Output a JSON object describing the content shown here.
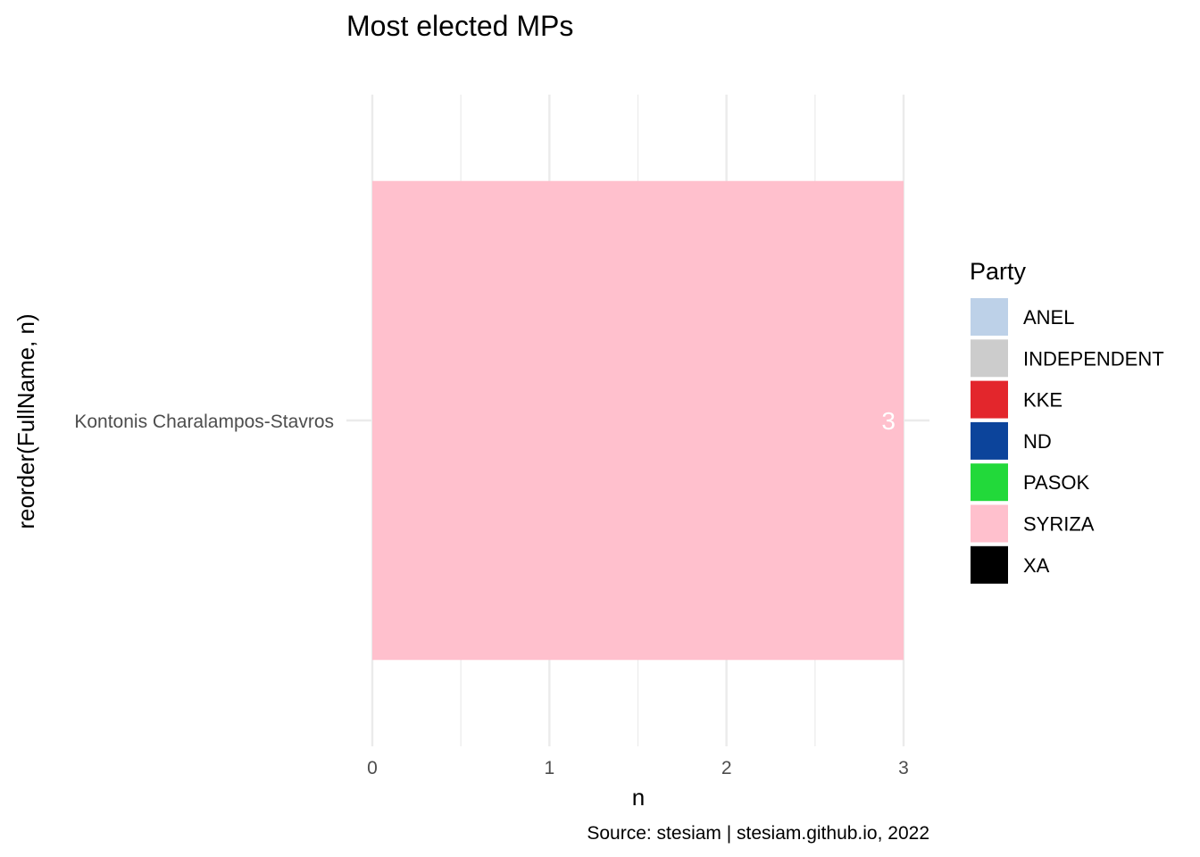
{
  "chart_data": {
    "type": "bar",
    "orientation": "horizontal",
    "title": "Most elected MPs",
    "xlabel": "n",
    "ylabel": "reorder(FullName, n)",
    "caption": "Source: stesiam | stesiam.github.io, 2022",
    "categories": [
      "Kontonis Charalampos-Stavros"
    ],
    "values": [
      3
    ],
    "value_labels": [
      "3"
    ],
    "bar_party": [
      "SYRIZA"
    ],
    "x_ticks": [
      0,
      1,
      2,
      3
    ],
    "x_tick_labels": [
      "0",
      "1",
      "2",
      "3"
    ],
    "xlim": [
      0,
      3
    ],
    "grid": true,
    "legend": {
      "title": "Party",
      "placement": "right",
      "entries": [
        {
          "label": "ANEL",
          "color": "#bdd1e8"
        },
        {
          "label": "INDEPENDENT",
          "color": "#cccccc"
        },
        {
          "label": "KKE",
          "color": "#e3262c"
        },
        {
          "label": "ND",
          "color": "#0c449b"
        },
        {
          "label": "PASOK",
          "color": "#22d93a"
        },
        {
          "label": "SYRIZA",
          "color": "#ffc0cd"
        },
        {
          "label": "XA",
          "color": "#000000"
        }
      ]
    },
    "colors": {
      "grid": "#ebebeb",
      "bar": "#ffc0cd",
      "data_label": "#ffffff"
    }
  }
}
